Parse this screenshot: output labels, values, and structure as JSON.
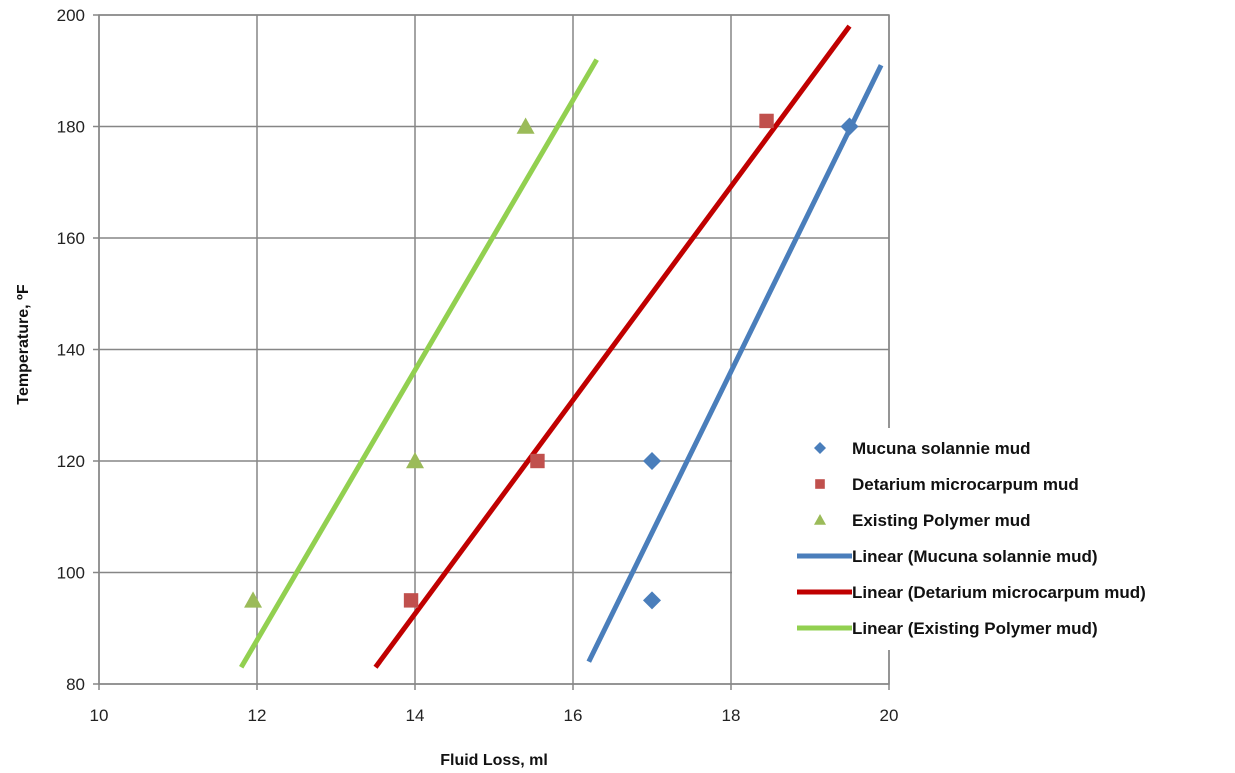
{
  "chart_data": {
    "type": "scatter",
    "title": "",
    "xlabel": "Fluid Loss, ml",
    "ylabel": "Temperature, ºF",
    "xlim": [
      10,
      20
    ],
    "ylim": [
      80,
      200
    ],
    "xticks": [
      "10",
      "12",
      "14",
      "16",
      "18",
      "20"
    ],
    "yticks": [
      "80",
      "100",
      "120",
      "140",
      "160",
      "180",
      "200"
    ],
    "grid": true,
    "legend_position": "right",
    "series": [
      {
        "name": "Mucuna solannie mud",
        "marker": "diamond",
        "color": "#4a7ebb",
        "points": [
          [
            17.0,
            95
          ],
          [
            17.0,
            120
          ],
          [
            19.5,
            180
          ]
        ]
      },
      {
        "name": "Detarium microcarpum mud",
        "marker": "square",
        "color": "#c0504d",
        "points": [
          [
            13.95,
            95
          ],
          [
            15.55,
            120
          ],
          [
            18.45,
            181
          ]
        ]
      },
      {
        "name": "Existing Polymer mud",
        "marker": "triangle",
        "color": "#9bbb59",
        "points": [
          [
            11.95,
            95
          ],
          [
            14.0,
            120
          ],
          [
            15.4,
            180
          ]
        ]
      }
    ],
    "trendlines": [
      {
        "name": "Linear (Mucuna solannie mud)",
        "color": "#4a7ebb",
        "from": [
          16.2,
          84
        ],
        "to": [
          19.9,
          191
        ]
      },
      {
        "name": "Linear (Detarium microcarpum mud)",
        "color": "#c00000",
        "from": [
          13.5,
          83
        ],
        "to": [
          19.5,
          198
        ]
      },
      {
        "name": "Linear (Existing Polymer mud)",
        "color": "#92d050",
        "from": [
          11.8,
          83
        ],
        "to": [
          16.3,
          192
        ]
      }
    ]
  }
}
